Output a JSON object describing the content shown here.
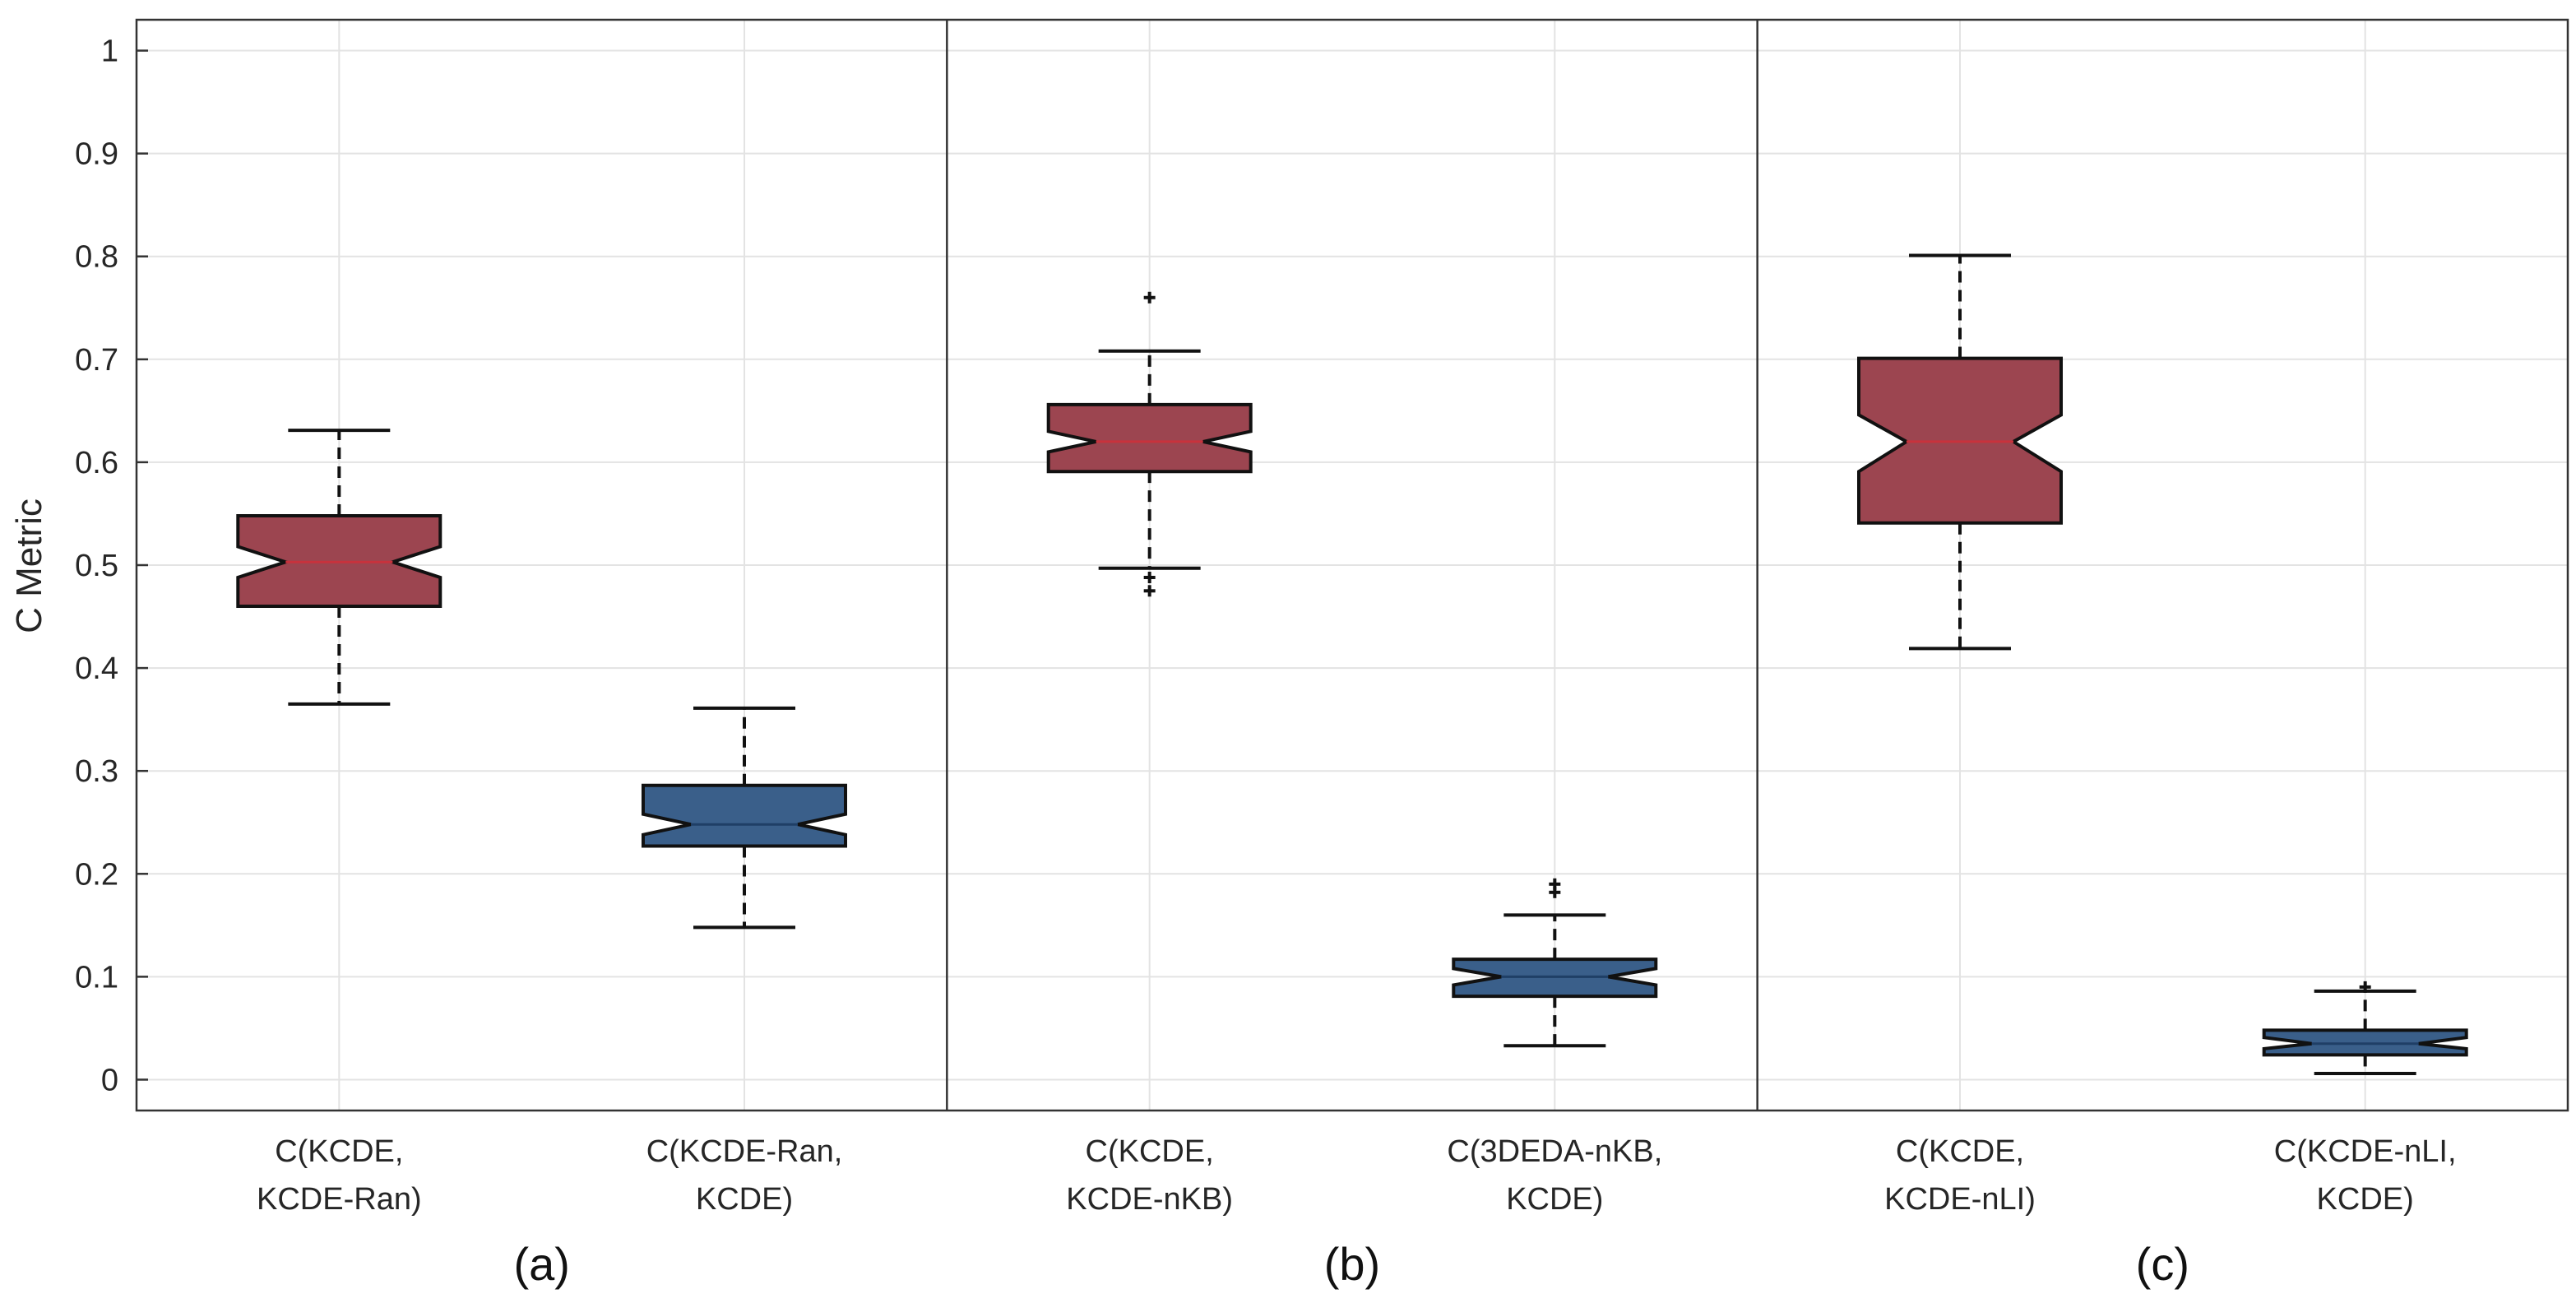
{
  "chart_data": {
    "type": "boxplot",
    "notched": true,
    "ylabel": "C Metric",
    "ylim": [
      -0.03,
      1.03
    ],
    "yticks": [
      0,
      0.1,
      0.2,
      0.3,
      0.4,
      0.5,
      0.6,
      0.7,
      0.8,
      0.9,
      1
    ],
    "ytick_labels": [
      "0",
      "0.1",
      "0.2",
      "0.3",
      "0.4",
      "0.5",
      "0.6",
      "0.7",
      "0.8",
      "0.9",
      "1"
    ],
    "grid": true,
    "colors": {
      "red_box": "#9c4550",
      "blue_box": "#3a5f8a",
      "median_red": "#c8323c",
      "median_blue": "#1f3f66",
      "grid": "#e3e3e3",
      "axis": "#333333"
    },
    "panels": [
      {
        "label": "(a)"
      },
      {
        "label": "(b)"
      },
      {
        "label": "(c)"
      }
    ],
    "boxes": [
      {
        "panel": 0,
        "label_line1": "C(KCDE,",
        "label_line2": "KCDE-Ran)",
        "color": "red",
        "whisker_low": 0.365,
        "q1": 0.46,
        "notch_low": 0.488,
        "median": 0.503,
        "notch_high": 0.518,
        "q3": 0.548,
        "whisker_high": 0.631,
        "outliers": []
      },
      {
        "panel": 0,
        "label_line1": "C(KCDE-Ran,",
        "label_line2": "KCDE)",
        "color": "blue",
        "whisker_low": 0.148,
        "q1": 0.227,
        "notch_low": 0.238,
        "median": 0.248,
        "notch_high": 0.258,
        "q3": 0.286,
        "whisker_high": 0.361,
        "outliers": []
      },
      {
        "panel": 1,
        "label_line1": "C(KCDE,",
        "label_line2": "KCDE-nKB)",
        "color": "red",
        "whisker_low": 0.497,
        "q1": 0.591,
        "notch_low": 0.61,
        "median": 0.62,
        "notch_high": 0.63,
        "q3": 0.656,
        "whisker_high": 0.708,
        "outliers": [
          0.76,
          0.488,
          0.475
        ]
      },
      {
        "panel": 1,
        "label_line1": "C(3DEDA-nKB,",
        "label_line2": "KCDE)",
        "color": "blue",
        "whisker_low": 0.033,
        "q1": 0.081,
        "notch_low": 0.092,
        "median": 0.1,
        "notch_high": 0.108,
        "q3": 0.117,
        "whisker_high": 0.16,
        "outliers": [
          0.19,
          0.182
        ]
      },
      {
        "panel": 2,
        "label_line1": "C(KCDE,",
        "label_line2": "KCDE-nLI)",
        "color": "red",
        "whisker_low": 0.419,
        "q1": 0.541,
        "notch_low": 0.591,
        "median": 0.62,
        "notch_high": 0.646,
        "q3": 0.701,
        "whisker_high": 0.801,
        "outliers": []
      },
      {
        "panel": 2,
        "label_line1": "C(KCDE-nLI,",
        "label_line2": "KCDE)",
        "color": "blue",
        "whisker_low": 0.006,
        "q1": 0.024,
        "notch_low": 0.03,
        "median": 0.035,
        "notch_high": 0.041,
        "q3": 0.048,
        "whisker_high": 0.086,
        "outliers": [
          0.09
        ]
      }
    ]
  }
}
